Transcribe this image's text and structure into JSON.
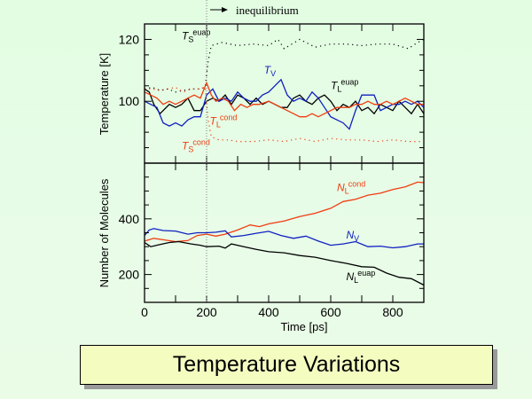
{
  "slide_title": "Temperature Variations",
  "colors": {
    "black": "#000000",
    "blue": "#1020c0",
    "orange": "#f03c10",
    "marker_line": "#808080"
  },
  "annotation": {
    "text": "inequilibrium",
    "arrow": "right-arrow",
    "at_x": 200
  },
  "chart_data": [
    {
      "type": "line",
      "panel": "top",
      "title": "",
      "xlabel": "",
      "ylabel": "Temperature [K]",
      "xlim": [
        0,
        900
      ],
      "ylim": [
        80,
        125
      ],
      "yticks_major": [
        100,
        120
      ],
      "ytick_labels": [
        "100",
        "120"
      ],
      "yticks_minor_step": 5,
      "xticks": [
        0,
        100,
        200,
        300,
        400,
        500,
        600,
        700,
        800,
        900
      ],
      "grid": false,
      "series": [
        {
          "name": "T_S^evap",
          "label_main": "T",
          "label_sub": "S",
          "label_sup": "euap",
          "color": "black",
          "style": "dotted",
          "label_at": [
            120,
            120
          ],
          "x": [
            0,
            25,
            50,
            75,
            100,
            125,
            150,
            175,
            195,
            205,
            215,
            250,
            300,
            350,
            400,
            430,
            450,
            500,
            550,
            600,
            650,
            700,
            750,
            800,
            850,
            880,
            900
          ],
          "y": [
            104,
            104.5,
            103.5,
            104,
            103,
            103.5,
            104,
            104,
            104.5,
            113,
            118,
            119,
            118,
            118.5,
            118,
            120,
            117,
            120,
            117.5,
            118.5,
            118.5,
            118,
            118.5,
            118.5,
            117,
            119,
            120
          ]
        },
        {
          "name": "T_L^evap",
          "label_main": "T",
          "label_sub": "L",
          "label_sup": "euap",
          "color": "black",
          "style": "solid",
          "label_at": [
            600,
            104
          ],
          "x": [
            0,
            15,
            30,
            50,
            60,
            80,
            100,
            120,
            140,
            160,
            180,
            200,
            220,
            240,
            260,
            280,
            300,
            320,
            340,
            360,
            380,
            400,
            420,
            440,
            460,
            480,
            500,
            520,
            540,
            560,
            580,
            600,
            620,
            640,
            660,
            680,
            700,
            720,
            740,
            760,
            780,
            800,
            820,
            840,
            860,
            880,
            900
          ],
          "y": [
            104,
            103,
            99,
            96,
            97,
            99,
            98,
            99,
            101,
            97,
            97,
            100,
            101,
            100,
            102,
            99,
            102,
            101,
            99,
            101,
            99,
            100,
            99,
            98,
            98,
            101,
            102,
            100,
            99,
            101,
            102,
            100,
            97,
            99,
            98,
            100,
            97,
            98,
            96,
            99,
            98,
            97,
            100,
            98,
            96,
            99,
            96
          ]
        },
        {
          "name": "T_V",
          "label_main": "T",
          "label_sub": "V",
          "label_sup": "",
          "color": "blue",
          "style": "solid",
          "label_at": [
            385,
            109
          ],
          "x": [
            0,
            20,
            40,
            60,
            80,
            100,
            120,
            140,
            160,
            180,
            200,
            220,
            240,
            260,
            280,
            300,
            320,
            340,
            360,
            380,
            400,
            420,
            440,
            460,
            480,
            500,
            520,
            540,
            560,
            580,
            600,
            620,
            640,
            660,
            680,
            700,
            720,
            740,
            760,
            780,
            800,
            820,
            840,
            860,
            880,
            900
          ],
          "y": [
            100,
            99,
            98,
            93,
            92,
            93,
            92,
            94,
            95,
            95,
            102,
            104,
            100,
            101,
            100,
            103,
            101,
            100,
            100,
            102,
            103,
            105,
            107,
            102,
            100,
            101,
            100,
            103,
            101,
            98,
            95,
            94,
            93,
            91,
            97,
            102,
            102,
            102,
            97,
            98,
            99,
            99,
            100,
            99,
            100,
            98
          ]
        },
        {
          "name": "T_L^cond",
          "label_main": "T",
          "label_sub": "L",
          "label_sup": "cond",
          "color": "orange",
          "style": "solid",
          "label_at": [
            210,
            92.5
          ],
          "x": [
            0,
            20,
            40,
            60,
            80,
            100,
            120,
            140,
            160,
            180,
            200,
            215,
            230,
            250,
            270,
            290,
            310,
            330,
            350,
            370,
            400,
            420,
            440,
            460,
            480,
            500,
            520,
            540,
            560,
            580,
            600,
            620,
            640,
            660,
            680,
            700,
            720,
            740,
            760,
            780,
            800,
            820,
            840,
            860,
            880,
            900
          ],
          "y": [
            103,
            102,
            101,
            99,
            100,
            99,
            100,
            101,
            102,
            101,
            106,
            102,
            100,
            101,
            100,
            97,
            99,
            98,
            99,
            99,
            100,
            99,
            98,
            97,
            96,
            95,
            95,
            96,
            95,
            96,
            97,
            98,
            98,
            98,
            99,
            99,
            100,
            99,
            99,
            100,
            99,
            100,
            101,
            100,
            99,
            99
          ]
        },
        {
          "name": "T_S^cond",
          "label_main": "T",
          "label_sub": "S",
          "label_sup": "cond",
          "color": "orange",
          "style": "dotted",
          "label_at": [
            120,
            84.5
          ],
          "x": [
            0,
            25,
            50,
            75,
            100,
            125,
            150,
            175,
            195,
            205,
            215,
            240,
            270,
            300,
            350,
            400,
            450,
            500,
            550,
            600,
            650,
            700,
            750,
            800,
            850,
            900
          ],
          "y": [
            104,
            104,
            103.5,
            104,
            104.5,
            103,
            104,
            104,
            104.5,
            94,
            88.5,
            87.5,
            87.5,
            87,
            87,
            87.5,
            87,
            88,
            87,
            88,
            87.5,
            87.5,
            87,
            87.5,
            87,
            87
          ]
        }
      ]
    },
    {
      "type": "line",
      "panel": "bottom",
      "title": "",
      "xlabel": "Time [ps]",
      "ylabel": "Number of Molecules",
      "xlim": [
        0,
        900
      ],
      "ylim": [
        100,
        600
      ],
      "yticks_major": [
        200,
        400
      ],
      "ytick_labels": [
        "200",
        "400"
      ],
      "yticks_minor_step": 50,
      "xticks": [
        0,
        100,
        200,
        300,
        400,
        500,
        600,
        700,
        800,
        900
      ],
      "xtick_labels": [
        "0",
        "200",
        "400",
        "600",
        "800"
      ],
      "xtick_label_values": [
        0,
        200,
        400,
        600,
        800
      ],
      "grid": false,
      "series": [
        {
          "name": "N_L^cond",
          "label_main": "N",
          "label_sub": "L",
          "label_sup": "cond",
          "color": "orange",
          "style": "solid",
          "label_at": [
            620,
            500
          ],
          "x": [
            0,
            30,
            60,
            100,
            140,
            170,
            200,
            230,
            260,
            300,
            340,
            370,
            400,
            450,
            500,
            550,
            600,
            640,
            680,
            720,
            760,
            800,
            840,
            880,
            900
          ],
          "y": [
            320,
            330,
            325,
            318,
            322,
            340,
            345,
            338,
            345,
            360,
            378,
            372,
            382,
            392,
            408,
            420,
            438,
            462,
            470,
            485,
            492,
            505,
            515,
            532,
            530
          ]
        },
        {
          "name": "N_V",
          "label_main": "N",
          "label_sub": "V",
          "label_sup": "",
          "color": "blue",
          "style": "solid",
          "label_at": [
            650,
            330
          ],
          "x": [
            0,
            15,
            30,
            60,
            100,
            140,
            170,
            200,
            230,
            260,
            280,
            320,
            360,
            400,
            440,
            480,
            520,
            560,
            600,
            640,
            680,
            720,
            760,
            800,
            840,
            880,
            900
          ],
          "y": [
            340,
            360,
            365,
            358,
            356,
            345,
            350,
            350,
            352,
            357,
            335,
            340,
            348,
            355,
            340,
            330,
            338,
            320,
            305,
            310,
            318,
            300,
            302,
            296,
            300,
            310,
            310
          ]
        },
        {
          "name": "N_L^evap",
          "label_main": "N",
          "label_sub": "L",
          "label_sup": "euap",
          "color": "black",
          "style": "solid",
          "label_at": [
            650,
            180
          ],
          "x": [
            0,
            20,
            50,
            80,
            110,
            150,
            180,
            200,
            240,
            260,
            280,
            320,
            360,
            400,
            450,
            500,
            550,
            600,
            650,
            700,
            740,
            780,
            820,
            860,
            900
          ],
          "y": [
            315,
            300,
            308,
            315,
            318,
            310,
            305,
            300,
            302,
            295,
            310,
            300,
            290,
            282,
            278,
            268,
            262,
            250,
            240,
            228,
            226,
            205,
            190,
            185,
            162
          ]
        }
      ]
    }
  ]
}
